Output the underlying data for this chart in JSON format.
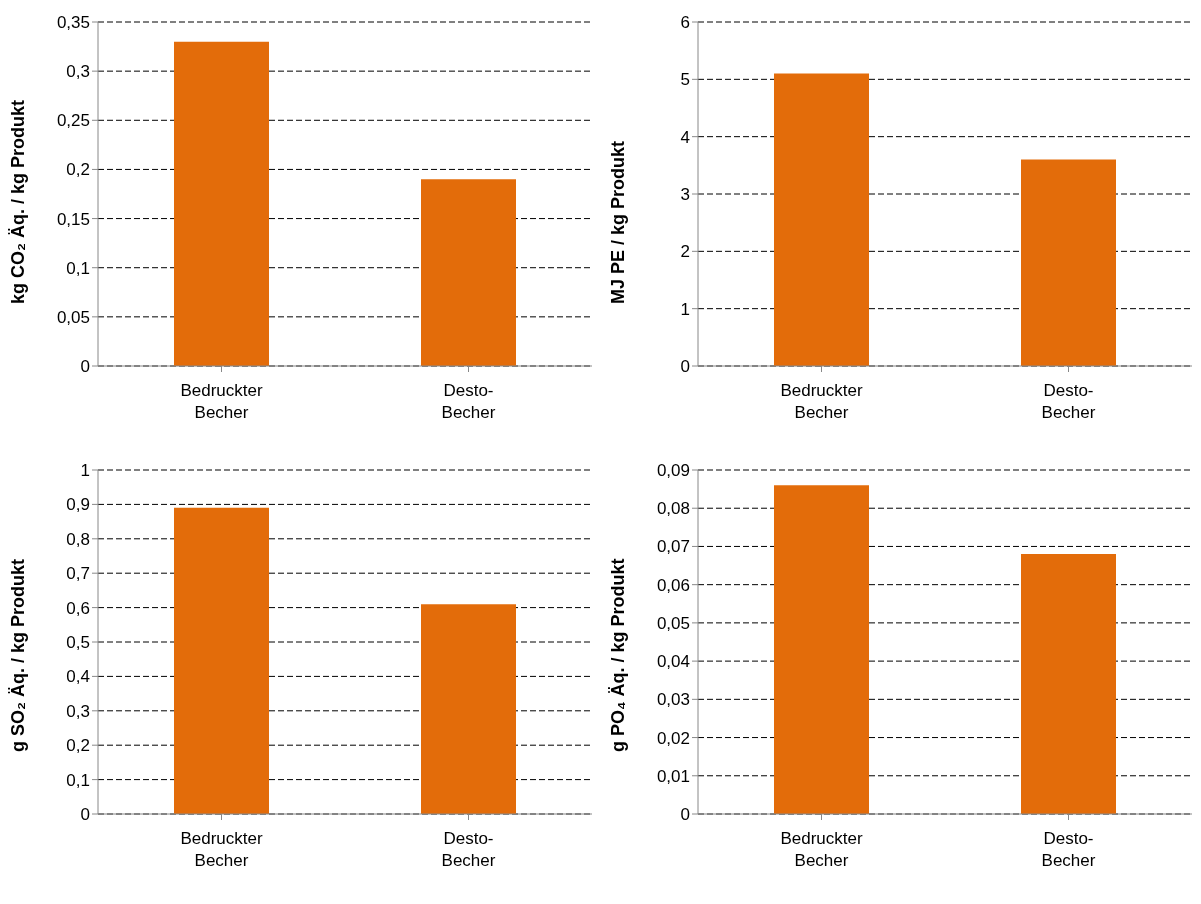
{
  "chart_data": [
    {
      "type": "bar",
      "ylabel": "kg CO₂ Äq. / kg Produkt",
      "categories": [
        "Bedruckter Becher",
        "Desto-Becher"
      ],
      "values": [
        0.33,
        0.19
      ],
      "color": "#e36c0a",
      "ylim": [
        0,
        0.35
      ],
      "yticks": [
        {
          "value": 0,
          "label": "0"
        },
        {
          "value": 0.05,
          "label": "0,05"
        },
        {
          "value": 0.1,
          "label": "0,1"
        },
        {
          "value": 0.15,
          "label": "0,15"
        },
        {
          "value": 0.2,
          "label": "0,2"
        },
        {
          "value": 0.25,
          "label": "0,25"
        },
        {
          "value": 0.3,
          "label": "0,3"
        },
        {
          "value": 0.35,
          "label": "0,35"
        }
      ],
      "grid": "y"
    },
    {
      "type": "bar",
      "ylabel": "MJ PE / kg Produkt",
      "categories": [
        "Bedruckter Becher",
        "Desto-Becher"
      ],
      "values": [
        5.1,
        3.6
      ],
      "color": "#e36c0a",
      "ylim": [
        0,
        6
      ],
      "yticks": [
        0,
        1,
        2,
        3,
        4,
        5,
        6
      ],
      "grid": "y"
    },
    {
      "type": "bar",
      "ylabel": "g SO₂ Äq. / kg Produkt",
      "categories": [
        "Bedruckter Becher",
        "Desto-Becher"
      ],
      "values": [
        0.89,
        0.61
      ],
      "color": "#e36c0a",
      "ylim": [
        0,
        1
      ],
      "yticks": [
        {
          "value": 0,
          "label": "0"
        },
        {
          "value": 0.1,
          "label": "0,1"
        },
        {
          "value": 0.2,
          "label": "0,2"
        },
        {
          "value": 0.3,
          "label": "0,3"
        },
        {
          "value": 0.4,
          "label": "0,4"
        },
        {
          "value": 0.5,
          "label": "0,5"
        },
        {
          "value": 0.6,
          "label": "0,6"
        },
        {
          "value": 0.7,
          "label": "0,7"
        },
        {
          "value": 0.8,
          "label": "0,8"
        },
        {
          "value": 0.9,
          "label": "0,9"
        },
        {
          "value": 1,
          "label": "1"
        }
      ],
      "grid": "y"
    },
    {
      "type": "bar",
      "ylabel": "g PO₄ Äq. / kg Produkt",
      "categories": [
        "Bedruckter Becher",
        "Desto-Becher"
      ],
      "values": [
        0.086,
        0.068
      ],
      "color": "#e36c0a",
      "ylim": [
        0,
        0.09
      ],
      "yticks": [
        {
          "value": 0,
          "label": "0"
        },
        {
          "value": 0.01,
          "label": "0,01"
        },
        {
          "value": 0.02,
          "label": "0,02"
        },
        {
          "value": 0.03,
          "label": "0,03"
        },
        {
          "value": 0.04,
          "label": "0,04"
        },
        {
          "value": 0.05,
          "label": "0,05"
        },
        {
          "value": 0.06,
          "label": "0,06"
        },
        {
          "value": 0.07,
          "label": "0,07"
        },
        {
          "value": 0.08,
          "label": "0,08"
        },
        {
          "value": 0.09,
          "label": "0,09"
        }
      ],
      "grid": "y"
    }
  ]
}
